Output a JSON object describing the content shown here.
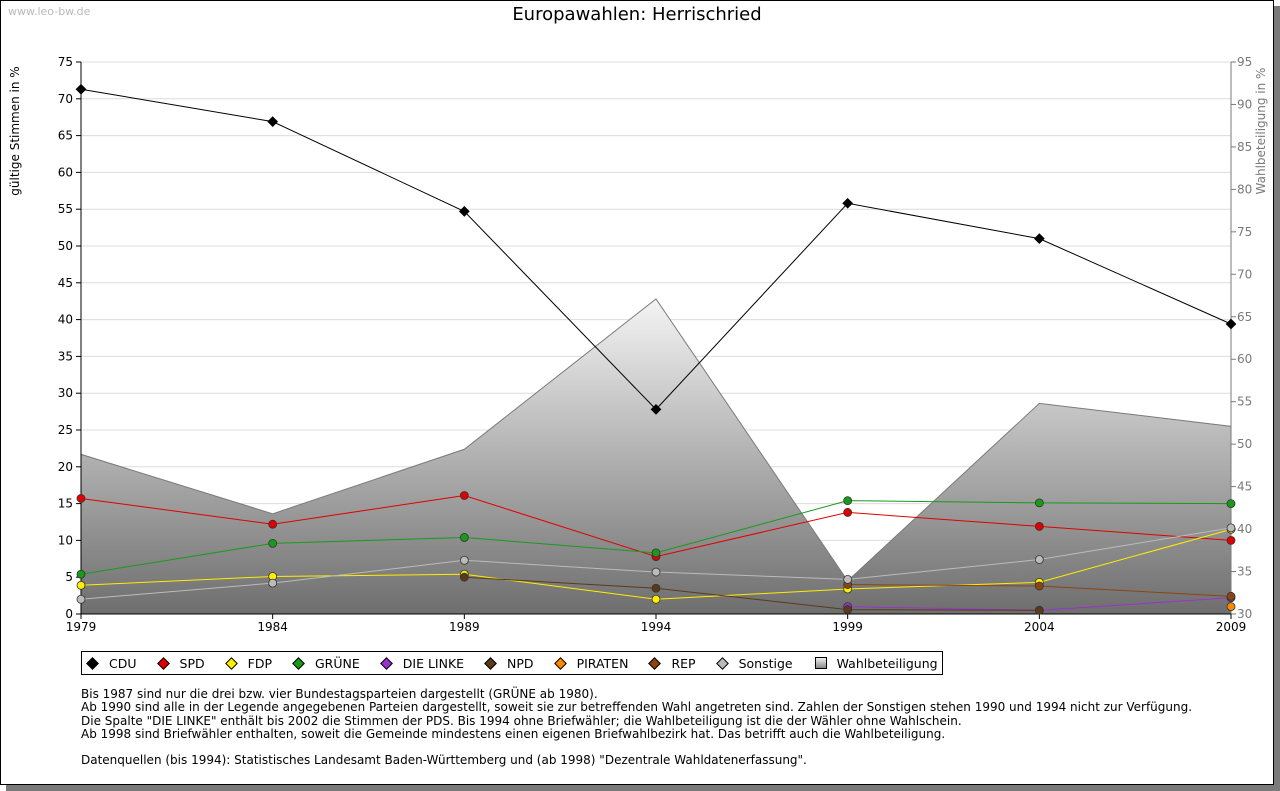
{
  "watermark": "www.leo-bw.de",
  "title": "Europawahlen: Herrischried",
  "chart_data": {
    "type": "line",
    "title": "Europawahlen: Herrischried",
    "xlabel": "",
    "ylabel": "gültige Stimmen in %",
    "ylabel_right": "Wahlbeteiligung in %",
    "x": [
      1979,
      1984,
      1989,
      1994,
      1999,
      2004,
      2009
    ],
    "ylim": [
      0,
      75
    ],
    "ylim_right": [
      30,
      95
    ],
    "y_ticks": [
      0,
      5,
      10,
      15,
      20,
      25,
      30,
      35,
      40,
      45,
      50,
      55,
      60,
      65,
      70,
      75
    ],
    "y_ticks_right": [
      30,
      35,
      40,
      45,
      50,
      55,
      60,
      65,
      70,
      75,
      80,
      85,
      90,
      95
    ],
    "grid": true,
    "legend_position": "bottom",
    "series": [
      {
        "name": "CDU",
        "color": "#000000",
        "values": [
          71.3,
          66.9,
          54.7,
          27.8,
          55.8,
          51.0,
          39.4
        ]
      },
      {
        "name": "SPD",
        "color": "#e00000",
        "values": [
          15.7,
          12.2,
          16.1,
          7.8,
          13.8,
          11.9,
          10.0
        ]
      },
      {
        "name": "FDP",
        "color": "#ffee00",
        "values": [
          3.9,
          5.1,
          5.4,
          2.0,
          3.4,
          4.3,
          11.5
        ]
      },
      {
        "name": "GRÜNE",
        "color": "#1a9a1a",
        "values": [
          5.4,
          9.6,
          10.4,
          8.3,
          15.4,
          15.1,
          15.0
        ]
      },
      {
        "name": "DIE LINKE",
        "color": "#9933cc",
        "values": [
          null,
          null,
          null,
          null,
          1.0,
          0.5,
          2.2
        ]
      },
      {
        "name": "NPD",
        "color": "#5a3a1a",
        "values": [
          null,
          null,
          5.0,
          3.5,
          0.6,
          0.5,
          null
        ]
      },
      {
        "name": "PIRATEN",
        "color": "#ff8800",
        "values": [
          null,
          null,
          null,
          null,
          null,
          null,
          1.0
        ]
      },
      {
        "name": "REP",
        "color": "#8b4513",
        "values": [
          null,
          null,
          null,
          null,
          4.0,
          3.8,
          2.4
        ]
      },
      {
        "name": "Sonstige",
        "color": "#bbbbbb",
        "values": [
          2.0,
          4.2,
          7.3,
          5.7,
          4.7,
          7.4,
          11.7
        ]
      }
    ],
    "turnout": {
      "name": "Wahlbeteiligung",
      "axis": "right",
      "values": [
        48.8,
        41.8,
        49.4,
        67.1,
        33.9,
        54.8,
        52.1
      ]
    }
  },
  "legend": [
    {
      "label": "CDU",
      "color": "#000000"
    },
    {
      "label": "SPD",
      "color": "#e00000"
    },
    {
      "label": "FDP",
      "color": "#ffee00"
    },
    {
      "label": "GRÜNE",
      "color": "#1a9a1a"
    },
    {
      "label": "DIE LINKE",
      "color": "#9933cc"
    },
    {
      "label": "NPD",
      "color": "#5a3a1a"
    },
    {
      "label": "PIRATEN",
      "color": "#ff8800"
    },
    {
      "label": "REP",
      "color": "#8b4513"
    },
    {
      "label": "Sonstige",
      "color": "#bbbbbb"
    },
    {
      "label": "Wahlbeteiligung",
      "box": true
    }
  ],
  "notes": [
    "Bis 1987 sind nur die drei bzw. vier Bundestagsparteien dargestellt (GRÜNE ab 1980).",
    "Ab 1990 sind alle in der Legende angegebenen Parteien dargestellt, soweit sie zur betreffenden Wahl angetreten sind. Zahlen der Sonstigen stehen 1990 und 1994 nicht zur Verfügung.",
    "Die Spalte \"DIE LINKE\" enthält bis 2002 die Stimmen der PDS. Bis 1994 ohne Briefwähler; die Wahlbeteiligung ist die der Wähler ohne Wahlschein.",
    "Ab 1998 sind Briefwähler enthalten, soweit die Gemeinde mindestens einen eigenen Briefwahlbezirk hat. Das betrifft auch die Wahlbeteiligung."
  ],
  "sources": "Datenquellen (bis 1994): Statistisches Landesamt Baden-Württemberg und (ab 1998) \"Dezentrale Wahldatenerfassung\"."
}
